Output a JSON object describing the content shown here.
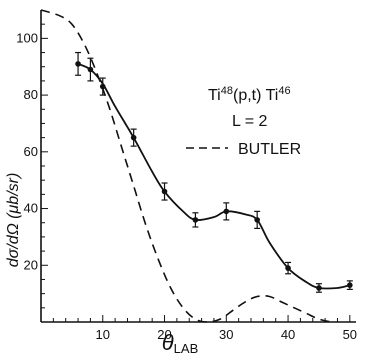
{
  "chart_data": {
    "type": "scatter",
    "legend": {
      "reaction_parts": [
        "Ti",
        "48",
        "(p,t) Ti",
        "46"
      ],
      "l_label": "L = 2",
      "butler_label": "BUTLER"
    },
    "xlabel": {
      "main": "θ",
      "sub": "LAB"
    },
    "ylabel": "dσ/dΩ  (μb/sr)",
    "xlim": [
      0,
      51
    ],
    "ylim": [
      0,
      110
    ],
    "xticks": [
      10,
      20,
      30,
      40,
      50
    ],
    "yticks": [
      20,
      40,
      60,
      80,
      100
    ],
    "series": [
      {
        "style": "points-with-errorbars",
        "x": [
          6,
          8,
          10,
          15,
          20,
          25,
          30,
          35,
          40,
          45,
          50
        ],
        "y": [
          91,
          89,
          83,
          65,
          46,
          36,
          39,
          36,
          19,
          12,
          13
        ],
        "err": [
          4,
          4,
          3,
          3,
          3,
          2.5,
          3,
          3,
          2,
          1.5,
          1.5
        ]
      },
      {
        "style": "solid-fit",
        "x": [
          6,
          8,
          10,
          12,
          15,
          18,
          20,
          23,
          25,
          28,
          30,
          33,
          35,
          37,
          40,
          43,
          45,
          48,
          50
        ],
        "y": [
          91,
          89,
          84,
          76,
          65,
          53,
          46,
          39,
          36,
          37,
          39,
          38,
          36,
          28,
          19,
          14,
          12,
          12,
          13
        ]
      },
      {
        "name": "BUTLER",
        "style": "dashed",
        "x": [
          0,
          3,
          5,
          7,
          9,
          11,
          13,
          15,
          17,
          19,
          21,
          23,
          25,
          27,
          29,
          31,
          33,
          35,
          37,
          39,
          41,
          43,
          45,
          47
        ],
        "y": [
          110,
          108,
          105,
          98,
          88,
          76,
          62,
          48,
          34,
          22,
          12,
          5,
          1,
          0,
          1,
          4,
          7,
          9,
          9,
          7,
          5,
          3,
          1,
          0
        ]
      }
    ]
  }
}
